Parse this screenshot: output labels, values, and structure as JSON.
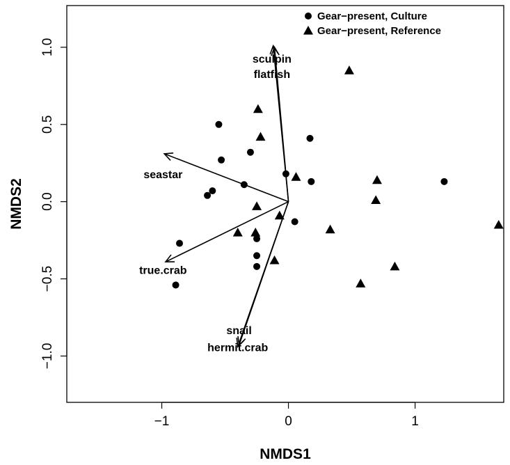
{
  "chart_data": {
    "type": "scatter",
    "xlabel": "NMDS1",
    "ylabel": "NMDS2",
    "xlim": [
      -1.75,
      1.7
    ],
    "ylim": [
      -1.3,
      1.27
    ],
    "x_ticks": [
      -1,
      0,
      1
    ],
    "y_ticks": [
      -1.0,
      -0.5,
      0.0,
      0.5,
      1.0
    ],
    "x_tick_labels": [
      "−1",
      "0",
      "1"
    ],
    "y_tick_labels": [
      "−1.0",
      "−0.5",
      "0.0",
      "0.5",
      "1.0"
    ],
    "grid": false,
    "legend_position": "top-right",
    "series": [
      {
        "name": "Gear−present, Culture",
        "marker": "circle",
        "color": "#000000",
        "points": [
          {
            "x": -0.55,
            "y": 0.5
          },
          {
            "x": -0.3,
            "y": 0.32
          },
          {
            "x": -0.53,
            "y": 0.27
          },
          {
            "x": -0.6,
            "y": 0.07
          },
          {
            "x": -0.64,
            "y": 0.04
          },
          {
            "x": -0.35,
            "y": 0.11
          },
          {
            "x": -0.02,
            "y": 0.18
          },
          {
            "x": 0.17,
            "y": 0.41
          },
          {
            "x": 0.18,
            "y": 0.13
          },
          {
            "x": 1.23,
            "y": 0.13
          },
          {
            "x": 0.05,
            "y": -0.13
          },
          {
            "x": -0.86,
            "y": -0.27
          },
          {
            "x": -0.25,
            "y": -0.24
          },
          {
            "x": -0.25,
            "y": -0.35
          },
          {
            "x": -0.25,
            "y": -0.42
          },
          {
            "x": -0.89,
            "y": -0.54
          }
        ]
      },
      {
        "name": "Gear−present, Reference",
        "marker": "triangle",
        "color": "#000000",
        "points": [
          {
            "x": 0.48,
            "y": 0.85
          },
          {
            "x": -0.24,
            "y": 0.6
          },
          {
            "x": -0.22,
            "y": 0.42
          },
          {
            "x": 0.06,
            "y": 0.16
          },
          {
            "x": 0.7,
            "y": 0.14
          },
          {
            "x": 0.69,
            "y": 0.01
          },
          {
            "x": -0.25,
            "y": -0.03
          },
          {
            "x": -0.07,
            "y": -0.09
          },
          {
            "x": 0.33,
            "y": -0.18
          },
          {
            "x": -0.4,
            "y": -0.2
          },
          {
            "x": -0.26,
            "y": -0.2
          },
          {
            "x": -0.11,
            "y": -0.38
          },
          {
            "x": 0.84,
            "y": -0.42
          },
          {
            "x": 0.57,
            "y": -0.53
          },
          {
            "x": 1.66,
            "y": -0.15
          }
        ]
      }
    ],
    "vectors": [
      {
        "label": "sculpin",
        "x": -0.12,
        "y": 1.01,
        "label_x": -0.13,
        "label_y": 0.92
      },
      {
        "label": "flatfish",
        "x": -0.11,
        "y": 1.0,
        "label_x": -0.13,
        "label_y": 0.82
      },
      {
        "label": "seastar",
        "x": -0.98,
        "y": 0.31,
        "label_x": -0.99,
        "label_y": 0.17
      },
      {
        "label": "true.crab",
        "x": -0.97,
        "y": -0.39,
        "label_x": -0.99,
        "label_y": -0.45
      },
      {
        "label": "snail",
        "x": -0.39,
        "y": -0.93,
        "label_x": -0.39,
        "label_y": -0.84
      },
      {
        "label": "hermit.crab",
        "x": -0.4,
        "y": -0.94,
        "label_x": -0.4,
        "label_y": -0.95
      }
    ]
  }
}
